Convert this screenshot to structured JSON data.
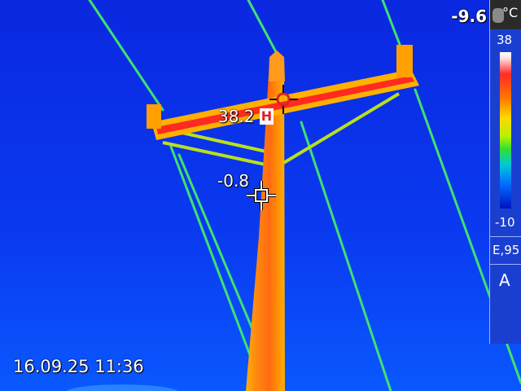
{
  "image": {
    "description": "Thermal infrared view of a wooden utility pole with crossarm and power lines against the sky",
    "palette": "iron-rainbow"
  },
  "overlay": {
    "top_right_temperature": "-9.6",
    "hot_spot": {
      "value": "38.2",
      "marker": "H"
    },
    "center_spot": {
      "value": "-0.8"
    },
    "timestamp": "16.09.25 11:36"
  },
  "sidebar": {
    "unit": "°C",
    "scale_max": "38",
    "scale_min": "-10",
    "emissivity": "E,95",
    "mode": "A"
  },
  "colors": {
    "sky": "#0a30e8",
    "pole": "#ff7a10",
    "pole_core": "#ff9a1a",
    "crossarm_hot": "#ff2a20",
    "lines": "#40e070",
    "cursor_hot": "#e02020"
  }
}
